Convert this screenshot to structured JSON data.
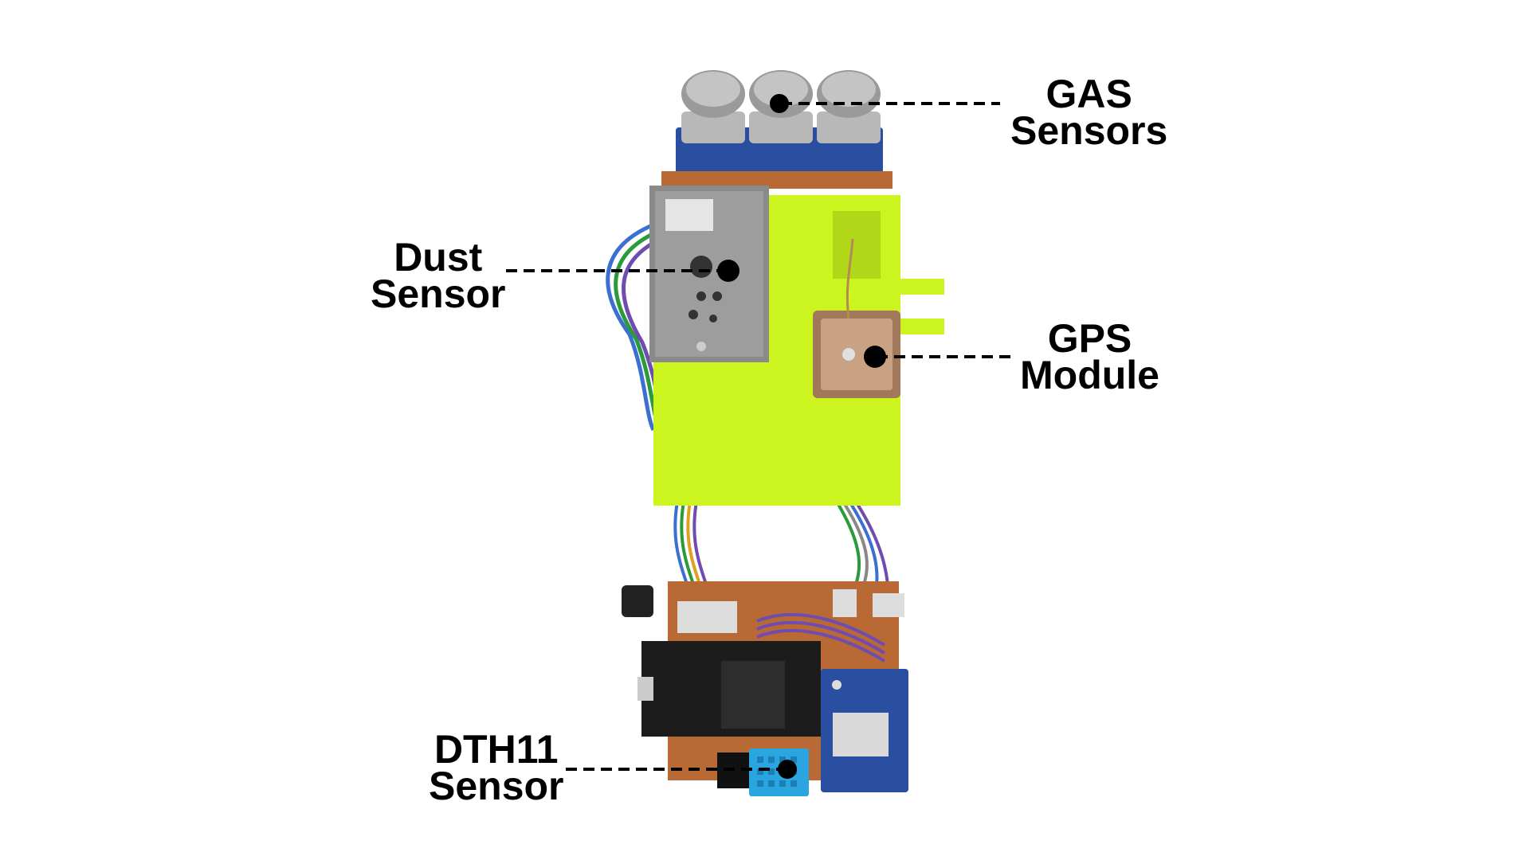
{
  "colors": {
    "board_green": "#ccf51f",
    "pcb_orange": "#b96a34",
    "sensor_blue": "#2b4fa0",
    "dht_blue": "#2aa5e0",
    "wire_purple": "#6f4cb0",
    "black": "#000000"
  },
  "labels": {
    "gas": {
      "line1": "GAS",
      "line2": "Sensors"
    },
    "dust": {
      "line1": "Dust",
      "line2": "Sensor"
    },
    "gps": {
      "line1": "GPS",
      "line2": "Module"
    },
    "dth": {
      "line1": "DTH11",
      "line2": "Sensor"
    }
  },
  "icons": {
    "gas_sensor": "mesh-cylinder-icon",
    "dust_sensor": "dust-sensor-icon",
    "gps_antenna": "patch-antenna-icon",
    "dht_sensor": "dht11-grid-icon"
  }
}
